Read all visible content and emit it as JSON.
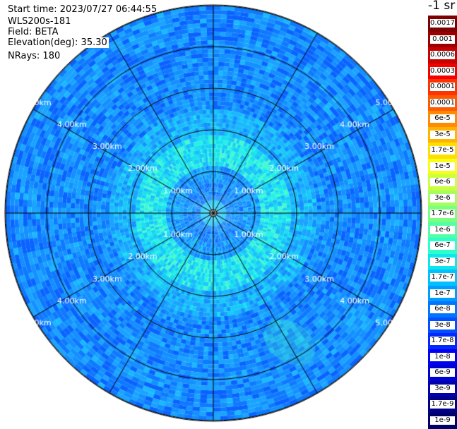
{
  "header": {
    "start_time": "Start time: 2023/07/27 06:44:55",
    "instrument": "WLS200s-181",
    "field": "Field: BETA",
    "elevation": "Elevation(deg): 35.30",
    "nrays": "NRays: 180"
  },
  "unit_label": "-1 sr",
  "range_rings": {
    "labels": [
      "1.00km",
      "2.00km",
      "3.00km",
      "4.00km",
      "5.00km"
    ]
  },
  "color_scale": {
    "labels": [
      "0.0017",
      "0.001",
      "0.0006",
      "0.0003",
      "0.00017",
      "0.0001",
      "6e-5",
      "3e-5",
      "1.7e-5",
      "1e-5",
      "6e-6",
      "3e-6",
      "1.7e-6",
      "1e-6",
      "6e-7",
      "3e-7",
      "1.7e-7",
      "1e-7",
      "6e-8",
      "3e-8",
      "1.7e-8",
      "1e-8",
      "6e-9",
      "3e-9",
      "1.7e-9",
      "1e-9"
    ],
    "colors": [
      "#7f0000",
      "#9a0000",
      "#c80000",
      "#f50000",
      "#ff3300",
      "#ff5a00",
      "#ff8c00",
      "#ffb400",
      "#ffdf00",
      "#f4ff1a",
      "#ccff3d",
      "#a3ff5f",
      "#7bff7f",
      "#52ffa5",
      "#2bffcb",
      "#0fe6ea",
      "#00c0ff",
      "#009cff",
      "#0075ff",
      "#0050ff",
      "#0028ff",
      "#0000f2",
      "#0000d0",
      "#0000ac",
      "#000088",
      "#000066"
    ]
  }
}
